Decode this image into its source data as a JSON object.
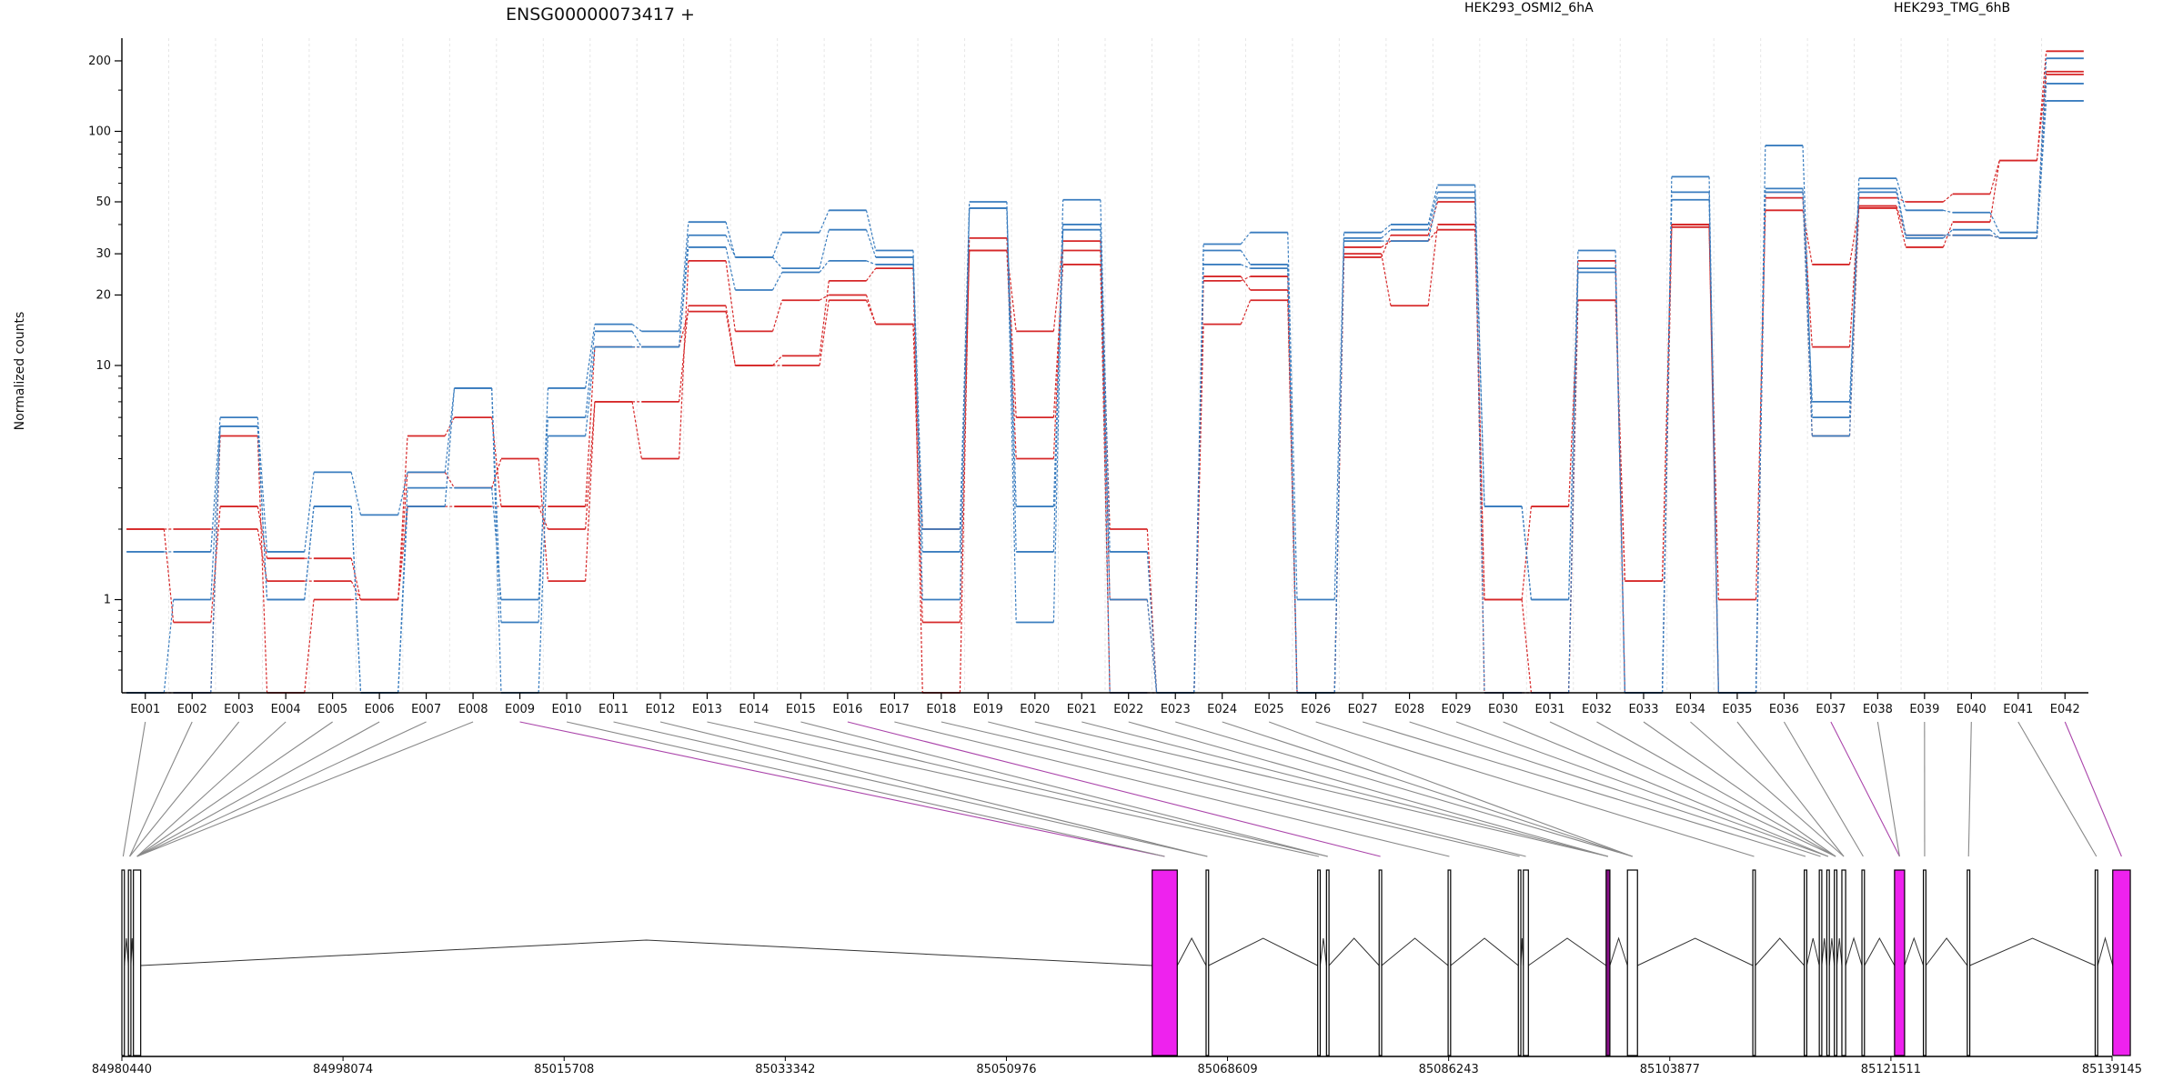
{
  "chart_data": {
    "type": "line",
    "title": "ENSG00000073417 +",
    "ylabel": "Normalized counts",
    "y_scale": "log",
    "ylim": [
      0.4,
      250
    ],
    "y_ticks": [
      "1",
      "10",
      "20",
      "30",
      "50",
      "100",
      "200"
    ],
    "legend": [
      {
        "name": "HEK293_OSMI2_6hA",
        "color": "#d62728"
      },
      {
        "name": "HEK293_TMG_6hB",
        "color": "#3a7dbf"
      }
    ],
    "categories": [
      "E001",
      "E002",
      "E003",
      "E004",
      "E005",
      "E006",
      "E007",
      "E008",
      "E009",
      "E010",
      "E011",
      "E012",
      "E013",
      "E014",
      "E015",
      "E016",
      "E017",
      "E018",
      "E019",
      "E020",
      "E021",
      "E022",
      "E023",
      "E024",
      "E025",
      "E026",
      "E027",
      "E028",
      "E029",
      "E030",
      "E031",
      "E032",
      "E033",
      "E034",
      "E035",
      "E036",
      "E037",
      "E038",
      "E039",
      "E040",
      "E041",
      "E042"
    ],
    "series": [
      {
        "group": "HEK293_OSMI2_6hA",
        "color": "#d62728",
        "values": [
          2,
          0.8,
          2.5,
          1.5,
          1.5,
          1,
          3.5,
          3,
          4,
          1.2,
          7,
          4,
          28,
          14,
          19,
          20,
          15,
          0.8,
          31,
          14,
          34,
          2,
          0.4,
          24,
          21,
          0.4,
          30,
          18,
          40,
          1,
          2.5,
          19,
          1.2,
          40,
          1,
          46,
          27,
          47,
          32,
          41,
          75,
          180
        ]
      },
      {
        "group": "HEK293_OSMI2_6hA",
        "color": "#d62728",
        "values": [
          2,
          2,
          2,
          1.2,
          1.2,
          1,
          2.5,
          2.5,
          2.5,
          2,
          7,
          7,
          18,
          10,
          10,
          19,
          15,
          2,
          31,
          4,
          31,
          1,
          0.4,
          15,
          19,
          0.4,
          32,
          34,
          38,
          1,
          0.4,
          19,
          1.2,
          40,
          0.4,
          55,
          5,
          48,
          36,
          36,
          35,
          175
        ]
      },
      {
        "group": "HEK293_OSMI2_6hA",
        "color": "#d62728",
        "values": [
          0.4,
          0.4,
          5,
          0.4,
          1,
          1,
          5,
          6,
          2.5,
          2.5,
          12,
          12,
          17,
          10,
          11,
          23,
          26,
          0.4,
          35,
          6,
          27,
          0.4,
          0.4,
          23,
          24,
          0.4,
          29,
          36,
          50,
          0.4,
          0.4,
          28,
          0.4,
          39,
          0.4,
          52,
          12,
          52,
          50,
          54,
          75,
          220
        ]
      },
      {
        "group": "HEK293_TMG_6hB",
        "color": "#3a7dbf",
        "values": [
          1.6,
          1.6,
          6,
          1.6,
          3.5,
          2.3,
          3.5,
          8,
          0.8,
          8,
          15,
          14,
          41,
          29,
          37,
          46,
          31,
          1.6,
          50,
          1.6,
          51,
          1.6,
          0.4,
          33,
          37,
          1,
          37,
          40,
          59,
          2.5,
          1,
          31,
          0.4,
          64,
          0.4,
          87,
          6,
          63,
          46,
          45,
          37,
          205
        ]
      },
      {
        "group": "HEK293_TMG_6hB",
        "color": "#3a7dbf",
        "values": [
          0.4,
          0.4,
          5.5,
          1,
          2.5,
          0.4,
          3,
          3,
          1,
          6,
          14,
          12,
          36,
          29,
          26,
          38,
          29,
          1,
          47,
          0.8,
          40,
          1,
          0.4,
          31,
          27,
          0.4,
          35,
          38,
          55,
          0.4,
          0.4,
          25,
          0.4,
          51,
          0.4,
          57,
          7,
          55,
          35,
          38,
          35,
          160
        ]
      },
      {
        "group": "HEK293_TMG_6hB",
        "color": "#3a7dbf",
        "values": [
          0.4,
          1,
          5.5,
          1,
          2.5,
          0.4,
          2.5,
          8,
          0.4,
          5,
          12,
          12,
          32,
          21,
          25,
          28,
          27,
          2,
          47,
          2.5,
          38,
          0.4,
          0.4,
          27,
          26,
          0.4,
          34,
          34,
          52,
          2.5,
          1,
          26,
          0.4,
          55,
          0.4,
          55,
          5,
          57,
          36,
          36,
          35,
          135
        ]
      }
    ],
    "gene_model": {
      "axis_ticks": [
        "84980440",
        "84998074",
        "85015708",
        "85033342",
        "85050976",
        "85068609",
        "85086243",
        "85103877",
        "85121511",
        "85139145"
      ],
      "exons": [
        {
          "start": 84980440,
          "end": 84980640,
          "color": "#ffffff"
        },
        {
          "start": 84980960,
          "end": 84981160,
          "color": "#ffffff"
        },
        {
          "start": 84981360,
          "end": 84981940,
          "color": "#ffffff"
        },
        {
          "start": 85062600,
          "end": 85064600,
          "color": "#ee22ee"
        },
        {
          "start": 85066900,
          "end": 85067100,
          "color": "#ffffff"
        },
        {
          "start": 85075800,
          "end": 85076000,
          "color": "#ffffff"
        },
        {
          "start": 85076500,
          "end": 85076700,
          "color": "#ffffff"
        },
        {
          "start": 85080700,
          "end": 85080900,
          "color": "#ffffff"
        },
        {
          "start": 85086200,
          "end": 85086400,
          "color": "#ffffff"
        },
        {
          "start": 85091800,
          "end": 85092000,
          "color": "#ffffff"
        },
        {
          "start": 85092200,
          "end": 85092600,
          "color": "#ffffff"
        },
        {
          "start": 85098800,
          "end": 85099100,
          "color": "#881188"
        },
        {
          "start": 85100500,
          "end": 85101300,
          "color": "#ffffff"
        },
        {
          "start": 85110500,
          "end": 85110700,
          "color": "#ffffff"
        },
        {
          "start": 85114600,
          "end": 85114800,
          "color": "#ffffff"
        },
        {
          "start": 85115800,
          "end": 85116000,
          "color": "#ffffff"
        },
        {
          "start": 85116400,
          "end": 85116600,
          "color": "#ffffff"
        },
        {
          "start": 85117000,
          "end": 85117200,
          "color": "#ffffff"
        },
        {
          "start": 85117600,
          "end": 85117900,
          "color": "#ffffff"
        },
        {
          "start": 85119200,
          "end": 85119400,
          "color": "#ffffff"
        },
        {
          "start": 85121800,
          "end": 85122600,
          "color": "#ee22ee"
        },
        {
          "start": 85124100,
          "end": 85124300,
          "color": "#ffffff"
        },
        {
          "start": 85127600,
          "end": 85127800,
          "color": "#ffffff"
        },
        {
          "start": 85137800,
          "end": 85138000,
          "color": "#ffffff"
        },
        {
          "start": 85139200,
          "end": 85140600,
          "color": "#ee22ee"
        }
      ],
      "exon_highlight_color": "#aa44aa"
    }
  }
}
